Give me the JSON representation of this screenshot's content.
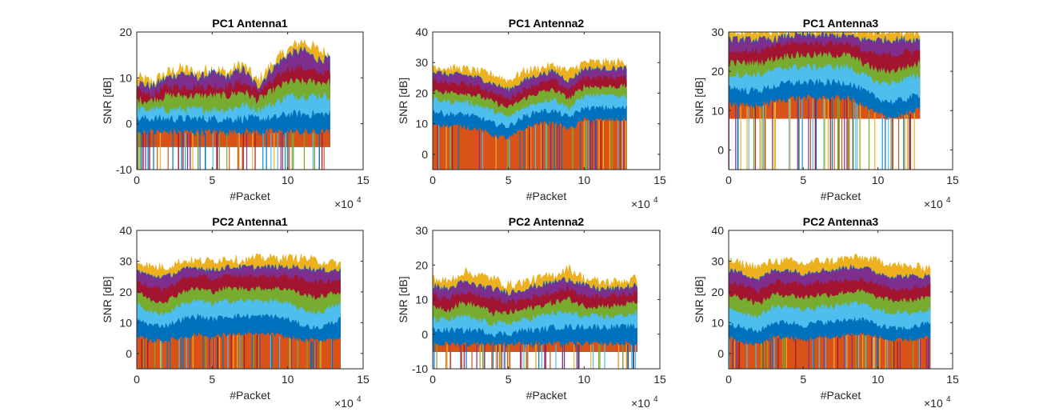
{
  "figure": {
    "background": "#ffffff",
    "series_colors": [
      "#0072BD",
      "#D95319",
      "#EDB120",
      "#7E2F8E",
      "#77AC30",
      "#4DBEEE",
      "#A2142F"
    ],
    "axis_color": "#262626"
  },
  "chart_data": [
    {
      "type": "line",
      "title": "PC1 Antenna1",
      "xlabel": "#Packet",
      "ylabel": "SNR [dB]",
      "xlim": [
        0,
        150000
      ],
      "ylim": [
        -10,
        20
      ],
      "xticks": [
        0,
        5,
        10,
        15
      ],
      "yticks": [
        -10,
        0,
        10,
        20
      ],
      "x_multiplier": "×10",
      "x_multiplier_exp": "4",
      "x": [
        0,
        10000,
        20000,
        30000,
        40000,
        50000,
        60000,
        70000,
        80000,
        90000,
        100000,
        110000,
        120000,
        128000
      ],
      "band": {
        "top": [
          10,
          9,
          11,
          12,
          11,
          12,
          11,
          13,
          9,
          13,
          16,
          18,
          16,
          15
        ],
        "floor": -5
      },
      "levels": [
        [
          9,
          8,
          10,
          11,
          10,
          11,
          10,
          12,
          8,
          12,
          15,
          16,
          14,
          14
        ],
        [
          7,
          6,
          8,
          8,
          8,
          8,
          8,
          9,
          7,
          9,
          12,
          12,
          11,
          11
        ],
        [
          5,
          5,
          6,
          6,
          6,
          6,
          6,
          7,
          5,
          7,
          9,
          9,
          9,
          9
        ],
        [
          3,
          3,
          3,
          3,
          3,
          3,
          3,
          4,
          3,
          4,
          6,
          6,
          6,
          6
        ],
        [
          1,
          1,
          1,
          1,
          1,
          1,
          1,
          1,
          1,
          1,
          2,
          2,
          2,
          2
        ],
        [
          -2,
          -2,
          -2,
          -2,
          -2,
          -2,
          -2,
          -2,
          -2,
          -2,
          -2,
          -2,
          -2,
          -2
        ]
      ],
      "x_end": 128000
    },
    {
      "type": "line",
      "title": "PC1 Antenna2",
      "xlabel": "#Packet",
      "ylabel": "SNR [dB]",
      "xlim": [
        0,
        150000
      ],
      "ylim": [
        -5,
        40
      ],
      "xticks": [
        0,
        5,
        10,
        15
      ],
      "yticks": [
        0,
        10,
        20,
        30,
        40
      ],
      "x_multiplier": "×10",
      "x_multiplier_exp": "4",
      "x": [
        0,
        10000,
        20000,
        30000,
        40000,
        50000,
        60000,
        70000,
        80000,
        90000,
        100000,
        110000,
        120000,
        128000
      ],
      "band": {
        "top": [
          29,
          28,
          28,
          27,
          26,
          24,
          27,
          28,
          29,
          27,
          30,
          30,
          30,
          30
        ],
        "floor": -5
      },
      "levels": [
        [
          27,
          26,
          26,
          25,
          23,
          21,
          24,
          26,
          27,
          24,
          28,
          28,
          28,
          28
        ],
        [
          24,
          23,
          23,
          22,
          20,
          18,
          21,
          23,
          24,
          21,
          25,
          25,
          25,
          25
        ],
        [
          21,
          20,
          20,
          19,
          17,
          15,
          18,
          20,
          21,
          18,
          22,
          22,
          22,
          22
        ],
        [
          18,
          17,
          17,
          16,
          14,
          12,
          15,
          17,
          18,
          15,
          19,
          19,
          19,
          19
        ],
        [
          14,
          13,
          13,
          12,
          10,
          9,
          12,
          14,
          14,
          12,
          15,
          15,
          15,
          15
        ],
        [
          10,
          9,
          9,
          8,
          6,
          5,
          8,
          10,
          10,
          8,
          11,
          11,
          11,
          11
        ]
      ],
      "x_end": 128000
    },
    {
      "type": "line",
      "title": "PC1 Antenna3",
      "xlabel": "#Packet",
      "ylabel": "SNR [dB]",
      "xlim": [
        0,
        150000
      ],
      "ylim": [
        -5,
        30
      ],
      "xticks": [
        0,
        5,
        10,
        15
      ],
      "yticks": [
        0,
        10,
        20,
        30
      ],
      "x_multiplier": "×10",
      "x_multiplier_exp": "4",
      "x": [
        0,
        10000,
        20000,
        30000,
        40000,
        50000,
        60000,
        70000,
        80000,
        90000,
        100000,
        110000,
        120000,
        128000
      ],
      "band": {
        "top": [
          30,
          30,
          30,
          30,
          30,
          30,
          30,
          30,
          30,
          30,
          30,
          30,
          30,
          30
        ],
        "floor": 8
      },
      "levels": [
        [
          28,
          28,
          28,
          28,
          29,
          29,
          29,
          29,
          29,
          28,
          28,
          28,
          28,
          28
        ],
        [
          25,
          25,
          25,
          26,
          27,
          27,
          27,
          27,
          27,
          25,
          24,
          24,
          25,
          25
        ],
        [
          22,
          22,
          22,
          23,
          24,
          24,
          24,
          24,
          24,
          22,
          20,
          20,
          21,
          22
        ],
        [
          19,
          19,
          19,
          20,
          21,
          21,
          21,
          21,
          21,
          19,
          17,
          17,
          18,
          19
        ],
        [
          16,
          15,
          15,
          16,
          17,
          17,
          17,
          17,
          17,
          15,
          13,
          12,
          13,
          14
        ],
        [
          12,
          11,
          11,
          12,
          13,
          13,
          13,
          13,
          13,
          11,
          9,
          8,
          9,
          10
        ]
      ],
      "x_end": 128000
    },
    {
      "type": "line",
      "title": "PC2 Antenna1",
      "xlabel": "#Packet",
      "ylabel": "SNR [dB]",
      "xlim": [
        0,
        150000
      ],
      "ylim": [
        -5,
        40
      ],
      "xticks": [
        0,
        5,
        10,
        15
      ],
      "yticks": [
        0,
        10,
        20,
        30,
        40
      ],
      "x_multiplier": "×10",
      "x_multiplier_exp": "4",
      "x": [
        0,
        10000,
        20000,
        30000,
        40000,
        50000,
        60000,
        70000,
        80000,
        90000,
        100000,
        110000,
        120000,
        135000
      ],
      "band": {
        "top": [
          30,
          28,
          28,
          30,
          30,
          30,
          31,
          30,
          31,
          31,
          31,
          31,
          30,
          29
        ],
        "floor": -5
      },
      "levels": [
        [
          27,
          25,
          25,
          27,
          28,
          27,
          28,
          28,
          28,
          28,
          28,
          28,
          27,
          27
        ],
        [
          24,
          21,
          21,
          24,
          25,
          24,
          25,
          25,
          25,
          25,
          25,
          24,
          23,
          24
        ],
        [
          20,
          17,
          17,
          20,
          21,
          20,
          21,
          21,
          21,
          21,
          21,
          19,
          18,
          20
        ],
        [
          16,
          13,
          13,
          16,
          17,
          16,
          17,
          17,
          17,
          17,
          16,
          14,
          13,
          16
        ],
        [
          11,
          9,
          9,
          11,
          12,
          11,
          12,
          12,
          12,
          12,
          11,
          9,
          8,
          11
        ],
        [
          5,
          4,
          4,
          5,
          6,
          5,
          6,
          6,
          6,
          6,
          5,
          4,
          4,
          5
        ]
      ],
      "x_end": 135000
    },
    {
      "type": "line",
      "title": "PC2 Antenna2",
      "xlabel": "#Packet",
      "ylabel": "SNR [dB]",
      "xlim": [
        0,
        150000
      ],
      "ylim": [
        -10,
        30
      ],
      "xticks": [
        0,
        5,
        10,
        15
      ],
      "yticks": [
        -10,
        0,
        10,
        20,
        30
      ],
      "x_multiplier": "×10",
      "x_multiplier_exp": "4",
      "x": [
        0,
        10000,
        20000,
        30000,
        40000,
        50000,
        60000,
        70000,
        80000,
        90000,
        100000,
        110000,
        120000,
        135000
      ],
      "band": {
        "top": [
          16,
          15,
          18,
          17,
          16,
          14,
          15,
          16,
          17,
          19,
          16,
          15,
          15,
          16
        ],
        "floor": -5
      },
      "levels": [
        [
          14,
          13,
          15,
          14,
          13,
          12,
          13,
          14,
          15,
          16,
          14,
          13,
          13,
          14
        ],
        [
          11,
          10,
          12,
          11,
          10,
          9,
          10,
          11,
          12,
          13,
          11,
          11,
          11,
          12
        ],
        [
          8,
          7,
          9,
          8,
          6,
          6,
          7,
          8,
          9,
          10,
          8,
          8,
          8,
          9
        ],
        [
          4,
          4,
          5,
          4,
          3,
          3,
          4,
          5,
          6,
          6,
          5,
          5,
          5,
          6
        ],
        [
          1,
          1,
          1,
          1,
          0,
          0,
          1,
          1,
          2,
          2,
          2,
          2,
          2,
          2
        ],
        [
          -3,
          -3,
          -3,
          -3,
          -3,
          -3,
          -3,
          -3,
          -3,
          -3,
          -3,
          -3,
          -3,
          -3
        ]
      ],
      "x_end": 135000
    },
    {
      "type": "line",
      "title": "PC2 Antenna3",
      "xlabel": "#Packet",
      "ylabel": "SNR [dB]",
      "xlim": [
        0,
        150000
      ],
      "ylim": [
        -5,
        40
      ],
      "xticks": [
        0,
        5,
        10,
        15
      ],
      "yticks": [
        0,
        10,
        20,
        30,
        40
      ],
      "x_multiplier": "×10",
      "x_multiplier_exp": "4",
      "x": [
        0,
        10000,
        20000,
        30000,
        40000,
        50000,
        60000,
        70000,
        80000,
        90000,
        100000,
        110000,
        120000,
        135000
      ],
      "band": {
        "top": [
          30,
          29,
          28,
          30,
          30,
          29,
          30,
          30,
          31,
          31,
          30,
          29,
          28,
          28
        ],
        "floor": -5
      },
      "levels": [
        [
          27,
          26,
          24,
          27,
          27,
          26,
          27,
          27,
          28,
          28,
          26,
          25,
          25,
          25
        ],
        [
          23,
          22,
          20,
          23,
          23,
          22,
          23,
          23,
          24,
          24,
          22,
          21,
          21,
          22
        ],
        [
          19,
          18,
          16,
          19,
          19,
          18,
          19,
          19,
          20,
          20,
          18,
          17,
          17,
          18
        ],
        [
          15,
          13,
          12,
          15,
          15,
          14,
          15,
          15,
          16,
          16,
          14,
          13,
          13,
          14
        ],
        [
          10,
          8,
          7,
          10,
          10,
          9,
          10,
          10,
          11,
          11,
          9,
          8,
          8,
          10
        ],
        [
          5,
          3,
          3,
          5,
          5,
          4,
          5,
          5,
          6,
          6,
          5,
          4,
          4,
          5
        ]
      ],
      "x_end": 135000
    }
  ]
}
